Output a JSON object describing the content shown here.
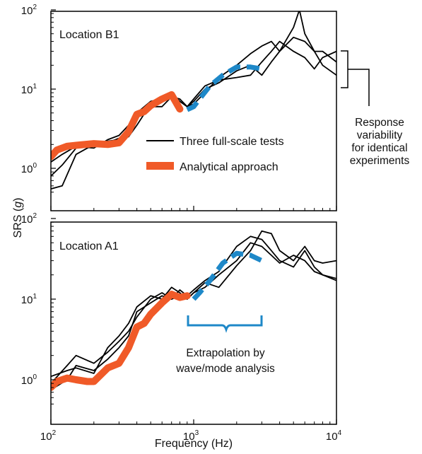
{
  "chart_data": [
    {
      "type": "line",
      "panel": "top",
      "title": "Location B1",
      "xscale": "log",
      "yscale": "log",
      "xlim": [
        100,
        10000
      ],
      "ylim": [
        0.5,
        100
      ],
      "xticks": [
        "10",
        "10",
        "10"
      ],
      "xtick_exps": [
        "2",
        "3",
        "4"
      ],
      "yticks": [
        "10",
        "10",
        "10"
      ],
      "ytick_exps": [
        "0",
        "1",
        "2"
      ],
      "legend": {
        "placement": "center",
        "entries": [
          {
            "label": "Three full-scale tests",
            "color": "#000000"
          },
          {
            "label": "Analytical approach",
            "color": "#F05A28"
          }
        ]
      },
      "series": [
        {
          "name": "Three full-scale tests",
          "color": "#000000",
          "x": [
            100,
            120,
            150,
            200,
            250,
            300,
            350,
            400,
            500,
            600,
            700,
            800,
            900,
            1000,
            1200,
            1500,
            2000,
            2500,
            3000,
            3500,
            4000,
            5000,
            5500,
            6000,
            7000,
            8000,
            10000
          ],
          "y": [
            0.55,
            0.6,
            1.5,
            2.0,
            2.2,
            2.3,
            2.5,
            3.5,
            6.5,
            8,
            8,
            7,
            6,
            7,
            10,
            12,
            17,
            20,
            15,
            22,
            30,
            60,
            100,
            50,
            30,
            20,
            15
          ]
        },
        {
          "name": "Three full-scale tests",
          "color": "#000000",
          "x": [
            100,
            120,
            150,
            200,
            250,
            300,
            350,
            400,
            500,
            600,
            700,
            800,
            900,
            1000,
            1200,
            1500,
            2000,
            2500,
            3000,
            3500,
            4000,
            5000,
            6000,
            7000,
            8000,
            10000
          ],
          "y": [
            0.8,
            1.1,
            1.8,
            2.2,
            2.1,
            2.4,
            2.8,
            5,
            7,
            7.5,
            9,
            7,
            6,
            6.5,
            9,
            14,
            20,
            28,
            35,
            40,
            30,
            45,
            40,
            30,
            30,
            22
          ]
        },
        {
          "name": "Three full-scale tests",
          "color": "#000000",
          "x": [
            100,
            120,
            150,
            200,
            250,
            300,
            350,
            400,
            500,
            600,
            700,
            800,
            900,
            1000,
            1200,
            1500,
            2000,
            2500,
            3000,
            3500,
            4000,
            5000,
            6000,
            7000,
            8000,
            10000
          ],
          "y": [
            1.2,
            1.5,
            1.9,
            1.8,
            2.3,
            2.6,
            3.5,
            4.5,
            6,
            6,
            8,
            7.5,
            6,
            7.5,
            11,
            13,
            14,
            15,
            22,
            30,
            40,
            30,
            25,
            18,
            25,
            30
          ]
        },
        {
          "name": "Analytical approach",
          "color": "#F05A28",
          "x": [
            100,
            110,
            130,
            150,
            200,
            250,
            300,
            350,
            400,
            450,
            500,
            600,
            700,
            800
          ],
          "y": [
            1.4,
            1.7,
            1.9,
            1.95,
            2.05,
            2.0,
            2.1,
            2.9,
            4.8,
            5.2,
            6.2,
            7.5,
            8.5,
            5.6
          ]
        },
        {
          "name": "Extrapolation",
          "color": "#1E88C8",
          "x": [
            900,
            1000,
            1100,
            1300,
            1600,
            2000,
            2500,
            3000
          ],
          "y": [
            5.5,
            6.0,
            7.5,
            11,
            15,
            19,
            19,
            18
          ]
        }
      ]
    },
    {
      "type": "line",
      "panel": "bottom",
      "title": "Location A1",
      "xscale": "log",
      "yscale": "log",
      "xlim": [
        100,
        10000
      ],
      "ylim": [
        0.5,
        100
      ],
      "xticks": [
        "10",
        "10",
        "10"
      ],
      "xtick_exps": [
        "2",
        "3",
        "4"
      ],
      "yticks": [
        "10",
        "10",
        "10"
      ],
      "ytick_exps": [
        "0",
        "1",
        "2"
      ],
      "series": [
        {
          "name": "Three full-scale tests",
          "color": "#000000",
          "x": [
            100,
            130,
            150,
            200,
            250,
            300,
            350,
            400,
            500,
            600,
            700,
            800,
            900,
            1000,
            1200,
            1500,
            2000,
            2500,
            3000,
            3500,
            4000,
            5000,
            6000,
            7000,
            8000,
            10000
          ],
          "y": [
            0.9,
            1.5,
            2,
            1.6,
            2.2,
            3,
            4,
            6,
            10,
            12,
            10,
            13,
            11,
            13,
            17,
            22,
            45,
            60,
            55,
            40,
            30,
            25,
            40,
            25,
            20,
            18
          ]
        },
        {
          "name": "Three full-scale tests",
          "color": "#000000",
          "x": [
            100,
            130,
            150,
            200,
            250,
            300,
            350,
            400,
            500,
            600,
            700,
            800,
            900,
            1000,
            1200,
            1500,
            2000,
            2500,
            3000,
            3500,
            4000,
            5000,
            6000,
            7000,
            8000,
            10000
          ],
          "y": [
            1.1,
            1.3,
            1.4,
            1.2,
            2.5,
            3.5,
            5,
            8,
            11,
            10,
            14,
            12,
            10,
            12,
            16,
            14,
            26,
            40,
            70,
            65,
            40,
            30,
            45,
            30,
            28,
            30
          ]
        },
        {
          "name": "Three full-scale tests",
          "color": "#000000",
          "x": [
            100,
            130,
            150,
            200,
            250,
            300,
            350,
            400,
            500,
            600,
            700,
            800,
            900,
            1000,
            1200,
            1500,
            2000,
            2500,
            3000,
            3500,
            4000,
            5000,
            6000,
            7000,
            8000,
            10000
          ],
          "y": [
            0.75,
            1.0,
            1.5,
            1.3,
            1.8,
            2.5,
            3.5,
            7,
            9,
            11,
            10,
            11,
            10,
            12,
            14,
            20,
            30,
            50,
            45,
            35,
            28,
            35,
            30,
            22,
            20,
            17
          ]
        },
        {
          "name": "Analytical approach",
          "color": "#F05A28",
          "x": [
            100,
            110,
            130,
            150,
            180,
            200,
            250,
            300,
            350,
            400,
            450,
            500,
            600,
            700,
            800,
            900
          ],
          "y": [
            0.8,
            0.95,
            1.05,
            1.0,
            0.95,
            0.95,
            1.4,
            1.6,
            2.5,
            4.5,
            5,
            6.5,
            9,
            11.5,
            10.5,
            11
          ]
        },
        {
          "name": "Extrapolation",
          "color": "#1E88C8",
          "x": [
            1000,
            1100,
            1300,
            1600,
            2000,
            2500,
            3000
          ],
          "y": [
            10,
            12,
            17,
            28,
            37,
            35,
            30
          ]
        }
      ]
    }
  ],
  "figure": {
    "ylabel_prefix": "SRS (",
    "ylabel_var": "g",
    "ylabel_suffix": ")",
    "xlabel": "Frequency (Hz)",
    "variability_note": [
      "Response",
      "variability",
      "for identical",
      "experiments"
    ],
    "extrapolation_note": [
      "Extrapolation by",
      "wave/mode analysis"
    ]
  },
  "colors": {
    "tests": "#000000",
    "analytical": "#F05A28",
    "extrapolation": "#1E88C8"
  }
}
